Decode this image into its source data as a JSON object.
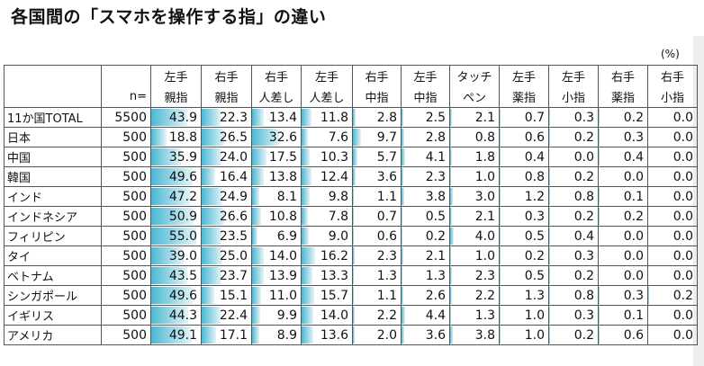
{
  "title": "各国間の「スマホを操作する指」の違い",
  "unit": "(%)",
  "chart_data": {
    "type": "table",
    "n_label": "n=",
    "columns": [
      {
        "line1": "左手",
        "line2": "親指"
      },
      {
        "line1": "右手",
        "line2": "親指"
      },
      {
        "line1": "右手",
        "line2": "人差し"
      },
      {
        "line1": "左手",
        "line2": "人差し"
      },
      {
        "line1": "右手",
        "line2": "中指"
      },
      {
        "line1": "左手",
        "line2": "中指"
      },
      {
        "line1": "タッチ",
        "line2": "ペン"
      },
      {
        "line1": "左手",
        "line2": "薬指"
      },
      {
        "line1": "左手",
        "line2": "小指"
      },
      {
        "line1": "右手",
        "line2": "薬指"
      },
      {
        "line1": "右手",
        "line2": "小指"
      }
    ],
    "rows": [
      {
        "label": "11か国TOTAL",
        "n": "5500",
        "values": [
          "43.9",
          "22.3",
          "13.4",
          "11.8",
          "2.8",
          "2.5",
          "2.1",
          "0.7",
          "0.3",
          "0.2",
          "0.0"
        ]
      },
      {
        "label": "日本",
        "n": "500",
        "values": [
          "18.8",
          "26.5",
          "32.6",
          "7.6",
          "9.7",
          "2.8",
          "0.8",
          "0.6",
          "0.2",
          "0.3",
          "0.0"
        ]
      },
      {
        "label": "中国",
        "n": "500",
        "values": [
          "35.9",
          "24.0",
          "17.5",
          "10.3",
          "5.7",
          "4.1",
          "1.8",
          "0.4",
          "0.0",
          "0.4",
          "0.0"
        ]
      },
      {
        "label": "韓国",
        "n": "500",
        "values": [
          "49.6",
          "16.4",
          "13.8",
          "12.4",
          "3.6",
          "2.3",
          "1.0",
          "0.8",
          "0.2",
          "0.0",
          "0.0"
        ]
      },
      {
        "label": "インド",
        "n": "500",
        "values": [
          "47.2",
          "24.9",
          "8.1",
          "9.8",
          "1.1",
          "3.8",
          "3.0",
          "1.2",
          "0.8",
          "0.1",
          "0.0"
        ]
      },
      {
        "label": "インドネシア",
        "n": "500",
        "values": [
          "50.9",
          "26.6",
          "10.8",
          "7.8",
          "0.7",
          "0.5",
          "2.1",
          "0.3",
          "0.2",
          "0.2",
          "0.0"
        ]
      },
      {
        "label": "フィリピン",
        "n": "500",
        "values": [
          "55.0",
          "23.5",
          "6.9",
          "9.0",
          "0.6",
          "0.2",
          "4.0",
          "0.5",
          "0.4",
          "0.0",
          "0.0"
        ]
      },
      {
        "label": "タイ",
        "n": "500",
        "values": [
          "39.0",
          "25.0",
          "14.0",
          "16.2",
          "2.3",
          "2.1",
          "1.0",
          "0.2",
          "0.3",
          "0.0",
          "0.0"
        ]
      },
      {
        "label": "ベトナム",
        "n": "500",
        "values": [
          "43.5",
          "23.7",
          "13.9",
          "13.3",
          "1.3",
          "1.3",
          "2.3",
          "0.5",
          "0.2",
          "0.0",
          "0.0"
        ]
      },
      {
        "label": "シンガポール",
        "n": "500",
        "values": [
          "49.6",
          "15.1",
          "11.0",
          "15.7",
          "1.1",
          "2.6",
          "2.2",
          "1.3",
          "0.8",
          "0.3",
          "0.2"
        ]
      },
      {
        "label": "イギリス",
        "n": "500",
        "values": [
          "44.3",
          "22.4",
          "9.9",
          "14.0",
          "2.2",
          "4.4",
          "1.3",
          "1.0",
          "0.3",
          "0.1",
          "0.0"
        ]
      },
      {
        "label": "アメリカ",
        "n": "500",
        "values": [
          "49.1",
          "17.1",
          "8.9",
          "13.6",
          "2.0",
          "3.6",
          "3.8",
          "1.0",
          "0.2",
          "0.6",
          "0.0"
        ]
      }
    ],
    "bar_scale_max": 60,
    "bar_color": "#4bb8d4"
  }
}
